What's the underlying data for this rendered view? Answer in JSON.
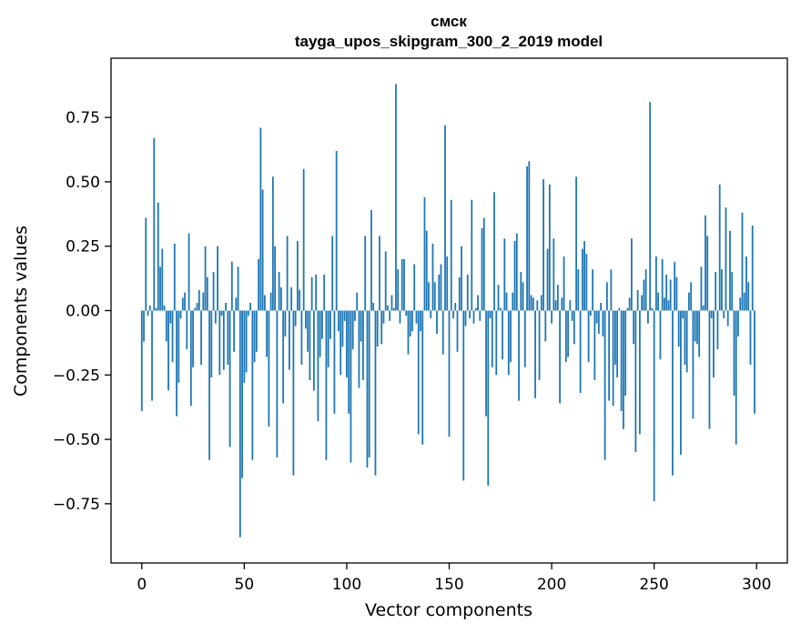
{
  "chart_data": {
    "type": "bar",
    "title": "смск",
    "subtitle": "tayga_upos_skipgram_300_2_2019 model",
    "xlabel": "Vector components",
    "ylabel": "Components values",
    "xlim": [
      -15,
      315
    ],
    "ylim": [
      -0.98,
      0.98
    ],
    "xticks": [
      0,
      50,
      100,
      150,
      200,
      250,
      300
    ],
    "yticks": [
      -0.75,
      -0.5,
      -0.25,
      0.0,
      0.25,
      0.5,
      0.75
    ],
    "ytick_labels": [
      "−0.75",
      "−0.50",
      "−0.25",
      "0.00",
      "0.25",
      "0.50",
      "0.75"
    ],
    "bar_color": "#1f77b4",
    "grid": false,
    "values": [
      -0.39,
      -0.12,
      0.36,
      -0.02,
      0.02,
      -0.35,
      0.67,
      0.01,
      0.42,
      0.17,
      0.24,
      0.02,
      -0.12,
      -0.31,
      -0.05,
      -0.2,
      0.26,
      -0.41,
      -0.28,
      -0.03,
      0.05,
      0.07,
      -0.15,
      0.3,
      -0.37,
      -0.22,
      0.01,
      0.03,
      0.08,
      -0.21,
      0.07,
      0.25,
      0.13,
      -0.58,
      -0.26,
      0.15,
      -0.05,
      0.25,
      -0.25,
      -0.02,
      -0.23,
      0.03,
      -0.21,
      -0.53,
      0.19,
      -0.16,
      0.05,
      0.17,
      -0.88,
      -0.65,
      -0.28,
      -0.24,
      -0.02,
      0.03,
      -0.58,
      -0.2,
      -0.16,
      0.2,
      0.71,
      0.47,
      0.06,
      -0.18,
      -0.45,
      0.07,
      0.52,
      0.25,
      -0.57,
      0.15,
      0.09,
      -0.36,
      -0.1,
      0.29,
      -0.23,
      0.09,
      -0.64,
      -0.06,
      0.27,
      0.08,
      -0.21,
      0.55,
      -0.07,
      -0.16,
      -0.27,
      0.13,
      -0.31,
      0.14,
      -0.43,
      -0.18,
      -0.11,
      0.14,
      -0.58,
      -0.22,
      -0.11,
      0.29,
      -0.4,
      0.62,
      -0.08,
      -0.25,
      -0.14,
      -0.04,
      -0.26,
      -0.4,
      -0.59,
      -0.15,
      -0.04,
      0.07,
      -0.3,
      -0.12,
      -0.27,
      0.29,
      -0.61,
      -0.57,
      0.39,
      0.03,
      -0.64,
      -0.14,
      0.29,
      -0.13,
      -0.05,
      0.23,
      0.02,
      -0.04,
      0.06,
      0.01,
      0.88,
      0.16,
      -0.05,
      0.2,
      0.2,
      -0.02,
      -0.17,
      -0.1,
      -0.08,
      0.18,
      -0.05,
      -0.48,
      -0.08,
      -0.52,
      0.44,
      0.31,
      0.11,
      -0.03,
      0.26,
      0.11,
      -0.09,
      0.14,
      0.18,
      -0.17,
      0.72,
      0.21,
      -0.49,
      0.43,
      -0.03,
      0.03,
      -0.16,
      0.13,
      0.25,
      -0.66,
      -0.06,
      0.14,
      -0.03,
      0.43,
      -0.05,
      0.01,
      0.06,
      -0.04,
      0.32,
      0.36,
      -0.41,
      -0.68,
      -0.03,
      -0.22,
      0.46,
      -0.25,
      0.1,
      0.01,
      -0.19,
      0.28,
      0.07,
      -0.25,
      -0.2,
      0.07,
      0.27,
      0.3,
      -0.35,
      0.15,
      0.11,
      -0.22,
      0.56,
      0.58,
      0.06,
      0.05,
      -0.34,
      0.04,
      -0.27,
      0.06,
      0.51,
      -0.12,
      0.24,
      0.49,
      -0.05,
      0.28,
      0.04,
      0.1,
      -0.36,
      0.05,
      0.21,
      -0.2,
      -0.18,
      0.04,
      -0.04,
      -0.13,
      0.52,
      0.16,
      -0.32,
      0.24,
      0.27,
      0.22,
      -0.2,
      -0.02,
      0.16,
      -0.27,
      -0.05,
      -0.09,
      0.03,
      -0.1,
      -0.58,
      0.11,
      -0.35,
      0.16,
      -0.37,
      -0.21,
      -0.26,
      0.01,
      -0.39,
      -0.46,
      -0.33,
      0.01,
      0.05,
      0.28,
      -0.13,
      -0.55,
      0.08,
      -0.48,
      0.06,
      0.12,
      0.16,
      -0.05,
      0.81,
      0.01,
      -0.74,
      0.21,
      0.07,
      -0.19,
      0.2,
      0.05,
      0.14,
      0.04,
      0.12,
      -0.64,
      0.19,
      0.13,
      -0.14,
      -0.56,
      -0.03,
      -0.21,
      -0.24,
      0.07,
      0.11,
      -0.42,
      -0.12,
      -0.13,
      -0.18,
      0.17,
      0.02,
      0.37,
      0.29,
      -0.46,
      -0.03,
      -0.26,
      0.15,
      -0.15,
      0.49,
      0.16,
      -0.03,
      0.4,
      -0.06,
      0.31,
      0.15,
      -0.33,
      -0.52,
      -0.1,
      0.05,
      0.38,
      0.07,
      0.21,
      0.11,
      -0.21,
      0.33,
      -0.4
    ]
  }
}
